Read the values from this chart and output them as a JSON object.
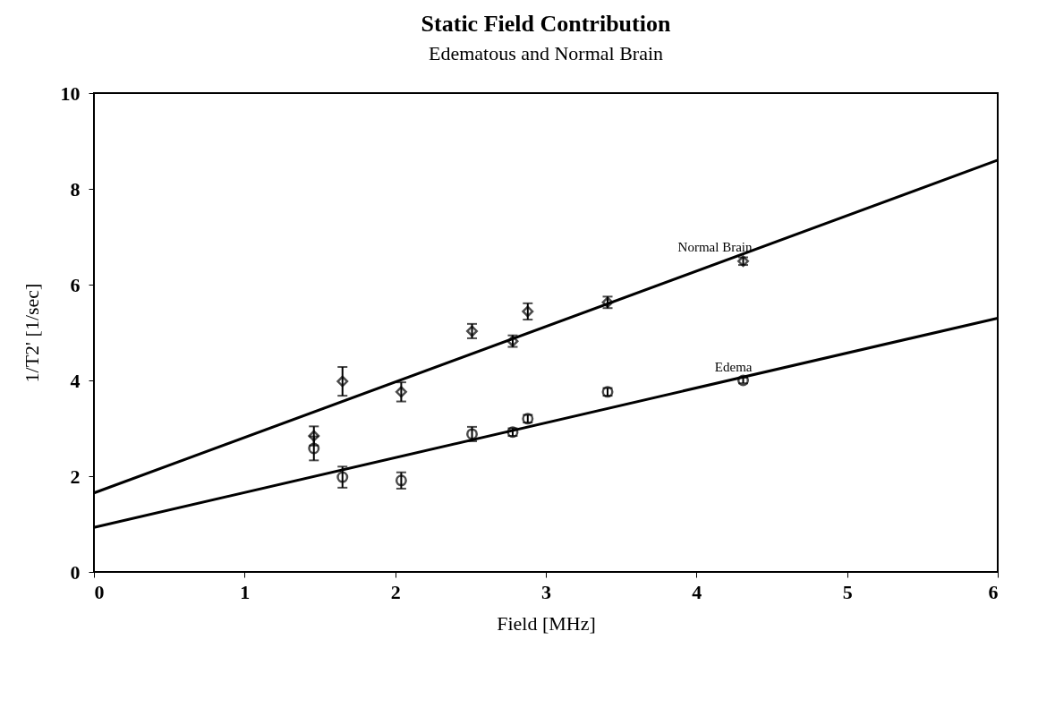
{
  "chart_data": {
    "type": "scatter",
    "title": "Static Field Contribution",
    "subtitle": "Edematous and Normal Brain",
    "xlabel": "Field [MHz]",
    "ylabel": "1/T2' [1/sec]",
    "xlim": [
      0,
      6
    ],
    "xticks": [
      0,
      1,
      2,
      3,
      4,
      5,
      6
    ],
    "ylim": [
      0,
      10
    ],
    "yticks": [
      0,
      2,
      4,
      6,
      8,
      10
    ],
    "series": [
      {
        "name": "Normal Brain",
        "marker": "diamond",
        "color": "#000000",
        "x": [
          1.46,
          1.65,
          2.04,
          2.51,
          2.78,
          2.88,
          3.41,
          4.31
        ],
        "values": [
          2.84,
          3.98,
          3.76,
          5.03,
          4.82,
          5.44,
          5.63,
          6.49
        ],
        "errors": [
          0.2,
          0.3,
          0.2,
          0.15,
          0.12,
          0.17,
          0.12,
          0.08
        ]
      },
      {
        "name": "Edema",
        "marker": "circle",
        "color": "#000000",
        "x": [
          1.46,
          1.65,
          2.04,
          2.51,
          2.78,
          2.88,
          3.41,
          4.31
        ],
        "values": [
          2.58,
          1.98,
          1.91,
          2.88,
          2.92,
          3.2,
          3.76,
          4.0
        ],
        "errors": [
          0.25,
          0.22,
          0.17,
          0.15,
          0.08,
          0.08,
          0.08,
          0.06
        ]
      },
      {
        "type": "line",
        "color": "#000000",
        "x": [
          0,
          6
        ],
        "values": [
          1.65,
          8.6
        ]
      },
      {
        "type": "line",
        "color": "#000000",
        "x": [
          0,
          6
        ],
        "values": [
          0.93,
          5.3
        ]
      }
    ]
  }
}
